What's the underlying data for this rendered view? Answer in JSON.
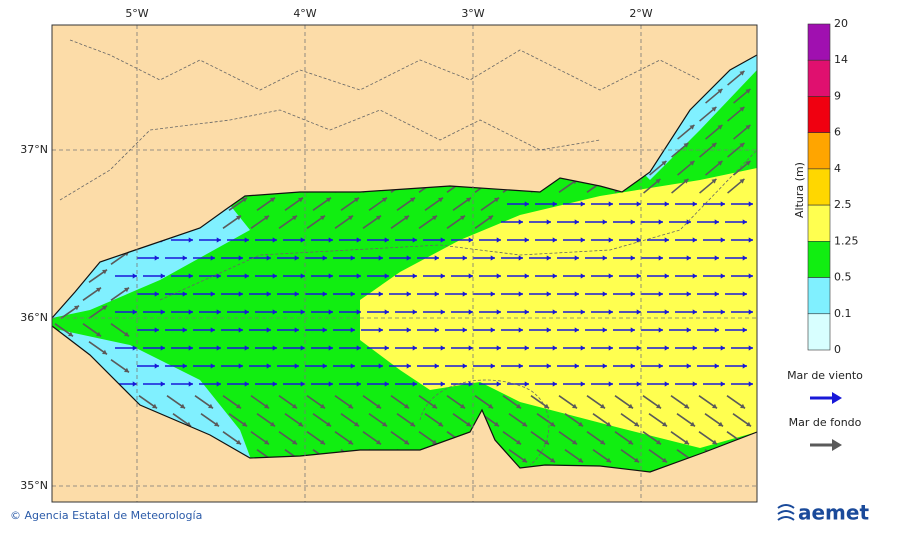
{
  "map": {
    "lon_labels": [
      "5°W",
      "4°W",
      "3°W",
      "2°W"
    ],
    "lat_labels": [
      "37°N",
      "36°N",
      "35°N"
    ],
    "colorbar": {
      "title": "Altura (m)",
      "levels": [
        "20",
        "14",
        "9",
        "6",
        "4",
        "2.5",
        "1.25",
        "0.5",
        "0.1",
        "0"
      ],
      "colors": [
        "#a010b0",
        "#e0106f",
        "#f00010",
        "#ffa500",
        "#ffd700",
        "#ffff50",
        "#11ee11",
        "#80f0ff",
        "#d8ffff"
      ]
    },
    "legend": [
      {
        "label": "Mar de viento",
        "color": "#1818d8"
      },
      {
        "label": "Mar de fondo",
        "color": "#5a5a5a"
      }
    ],
    "footer": {
      "credit": "© Agencia Estatal de Meteorología",
      "logo": "aemet"
    }
  }
}
